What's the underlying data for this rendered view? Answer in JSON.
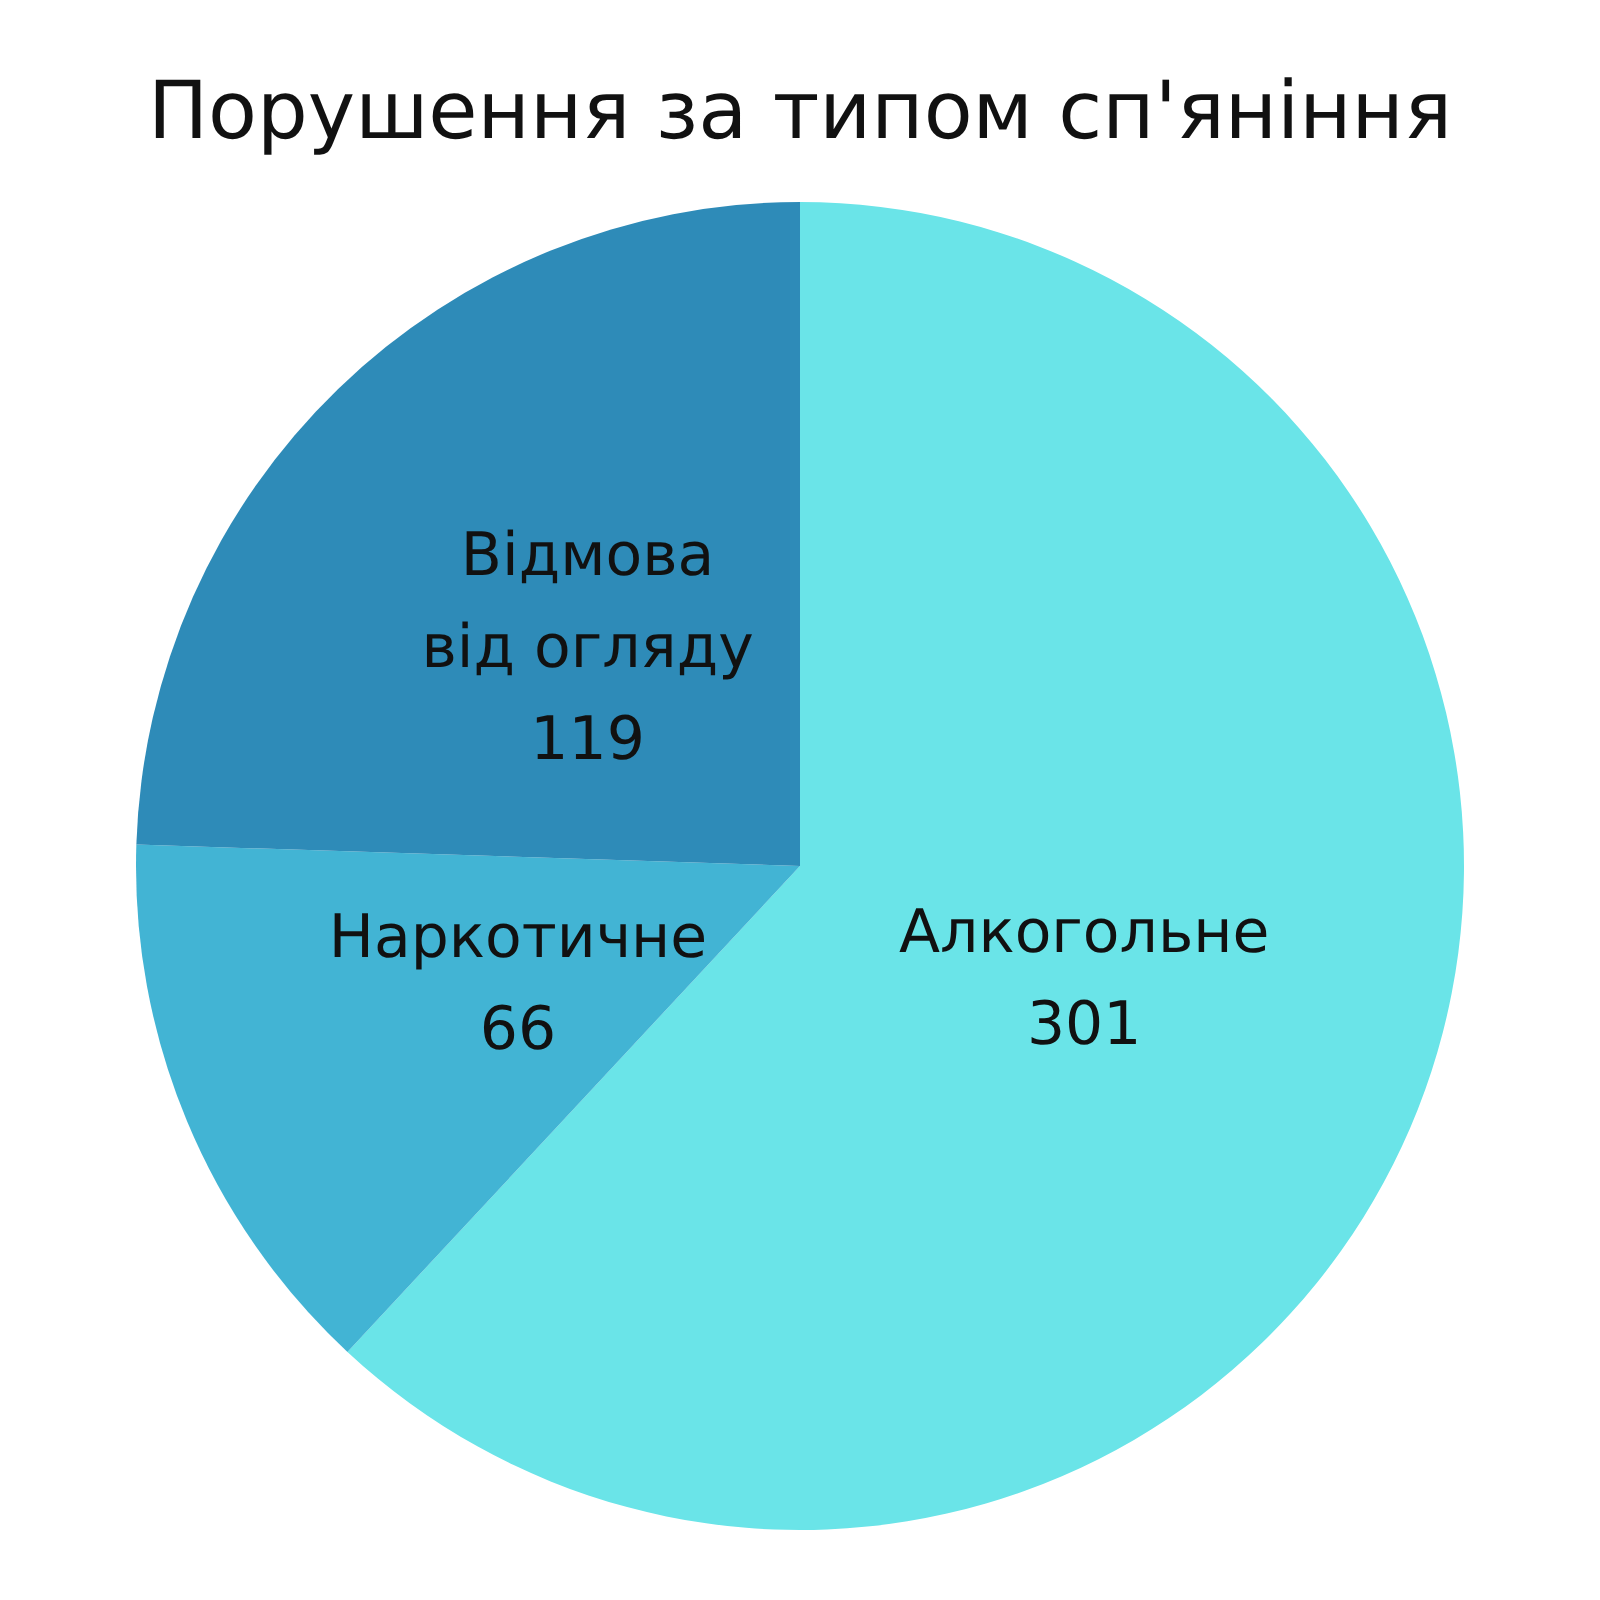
{
  "chart_data": {
    "type": "pie",
    "title": "Порушення за типом сп'яніння",
    "categories": [
      "Алкогольне",
      "Наркотичне",
      "Відмова від огляду"
    ],
    "values": [
      301,
      66,
      119
    ],
    "colors": [
      "#6ae4e8",
      "#42b4d4",
      "#2e8bb8"
    ],
    "data_labels": true
  }
}
